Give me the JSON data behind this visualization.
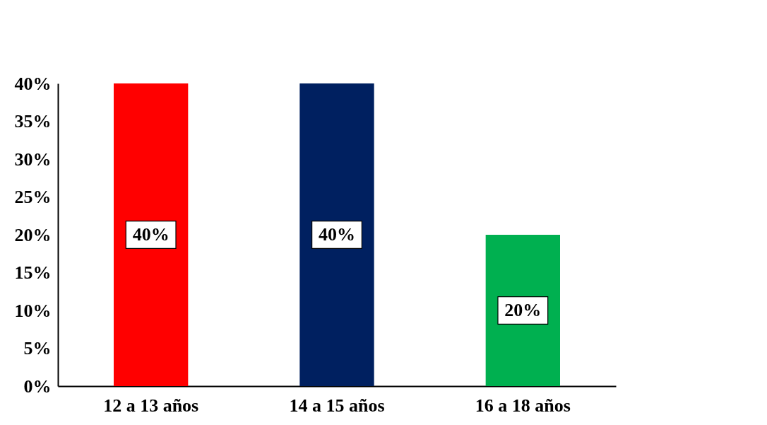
{
  "chart_data": {
    "type": "bar",
    "categories": [
      "12 a 13 años",
      "14 a 15 años",
      "16 a 18 años"
    ],
    "values": [
      40,
      40,
      20
    ],
    "colors": [
      "#ff0000",
      "#002060",
      "#00b050"
    ],
    "value_labels": [
      "40%",
      "40%",
      "20%"
    ],
    "ylim": [
      0,
      40
    ],
    "yticks": [
      {
        "value": 0,
        "label": "0%"
      },
      {
        "value": 5,
        "label": "5%"
      },
      {
        "value": 10,
        "label": "10%"
      },
      {
        "value": 15,
        "label": "15%"
      },
      {
        "value": 20,
        "label": "20%"
      },
      {
        "value": 25,
        "label": "25%"
      },
      {
        "value": 30,
        "label": "30%"
      },
      {
        "value": 35,
        "label": "35%"
      },
      {
        "value": 40,
        "label": "40%"
      }
    ],
    "grid": false
  }
}
